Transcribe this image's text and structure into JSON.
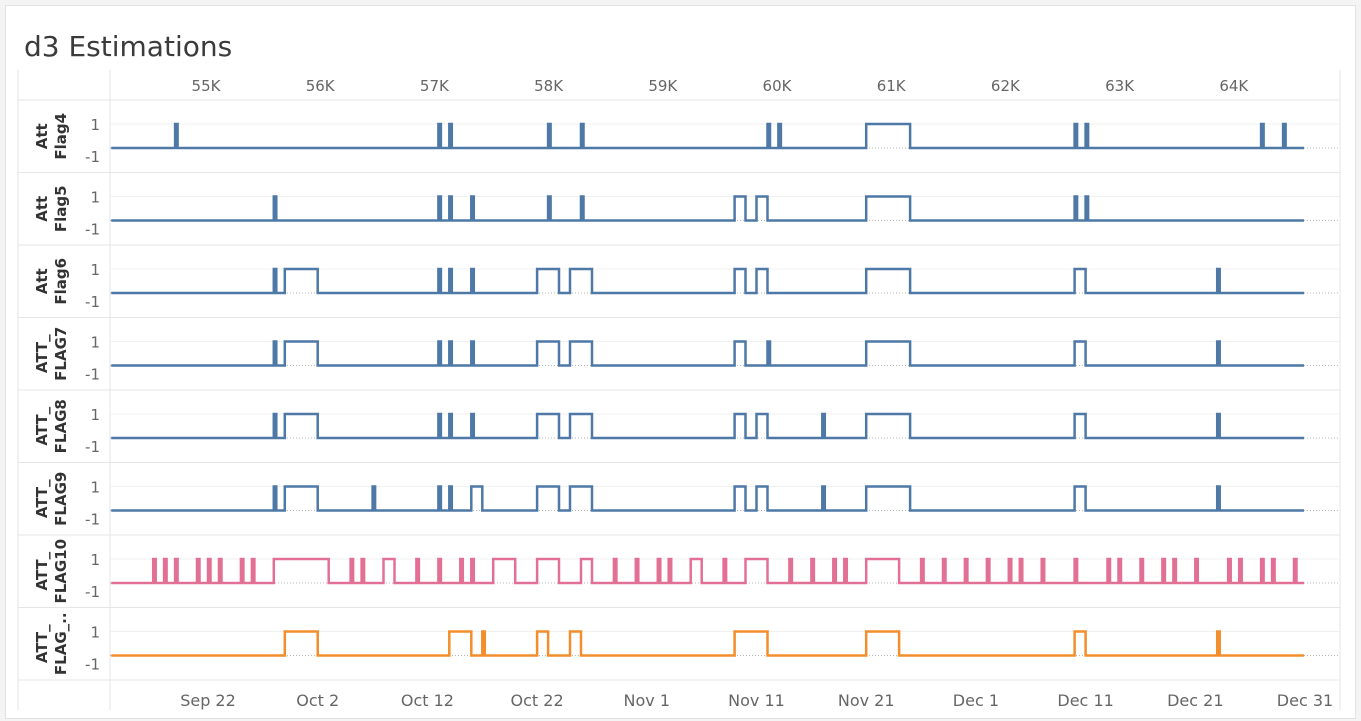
{
  "title": "d3 Estimations",
  "chart_data": {
    "type": "line",
    "title": "d3 Estimations",
    "interpolation": "step",
    "x_top": {
      "label": "",
      "ticks": [
        "55K",
        "56K",
        "57K",
        "58K",
        "59K",
        "60K",
        "61K",
        "62K",
        "63K",
        "64K"
      ]
    },
    "x_bottom": {
      "label": "",
      "range": [
        "2023-09-17",
        "2023-12-31"
      ],
      "ticks": [
        {
          "label": "Sep 22",
          "date": "2023-09-22"
        },
        {
          "label": "Oct 2",
          "date": "2023-10-02"
        },
        {
          "label": "Oct 12",
          "date": "2023-10-12"
        },
        {
          "label": "Oct 22",
          "date": "2023-10-22"
        },
        {
          "label": "Nov 1",
          "date": "2023-11-01"
        },
        {
          "label": "Nov 11",
          "date": "2023-11-11"
        },
        {
          "label": "Nov 21",
          "date": "2023-11-21"
        },
        {
          "label": "Dec 1",
          "date": "2023-12-01"
        },
        {
          "label": "Dec 11",
          "date": "2023-12-11"
        },
        {
          "label": "Dec 21",
          "date": "2023-12-21"
        },
        {
          "label": "Dec 31",
          "date": "2023-12-31"
        }
      ]
    },
    "y": {
      "ticks": [
        "1",
        "-1"
      ],
      "ylim": [
        -1.5,
        1.5
      ],
      "baseline_line": 0
    },
    "time_span": [
      "2023-09-17",
      "2023-12-30"
    ],
    "series": [
      {
        "name": "Att Flag4",
        "color": "#4e79a7",
        "high_intervals": [
          [
            "2023-09-19",
            "2023-09-19"
          ],
          [
            "2023-10-13",
            "2023-10-13"
          ],
          [
            "2023-10-14",
            "2023-10-14"
          ],
          [
            "2023-10-23",
            "2023-10-23"
          ],
          [
            "2023-10-26",
            "2023-10-26"
          ],
          [
            "2023-11-12",
            "2023-11-12"
          ],
          [
            "2023-11-13",
            "2023-11-13"
          ],
          [
            "2023-11-21",
            "2023-11-25"
          ],
          [
            "2023-12-10",
            "2023-12-10"
          ],
          [
            "2023-12-11",
            "2023-12-11"
          ],
          [
            "2023-12-27",
            "2023-12-27"
          ],
          [
            "2023-12-29",
            "2023-12-29"
          ]
        ]
      },
      {
        "name": "Att Flag5",
        "color": "#4e79a7",
        "high_intervals": [
          [
            "2023-09-28",
            "2023-09-28"
          ],
          [
            "2023-10-13",
            "2023-10-13"
          ],
          [
            "2023-10-14",
            "2023-10-14"
          ],
          [
            "2023-10-16",
            "2023-10-16"
          ],
          [
            "2023-10-23",
            "2023-10-23"
          ],
          [
            "2023-10-26",
            "2023-10-26"
          ],
          [
            "2023-11-09",
            "2023-11-10"
          ],
          [
            "2023-11-11",
            "2023-11-12"
          ],
          [
            "2023-11-21",
            "2023-11-25"
          ],
          [
            "2023-12-10",
            "2023-12-10"
          ],
          [
            "2023-12-11",
            "2023-12-11"
          ]
        ]
      },
      {
        "name": "Att Flag6",
        "color": "#4e79a7",
        "high_intervals": [
          [
            "2023-09-28",
            "2023-09-28"
          ],
          [
            "2023-09-29",
            "2023-10-02"
          ],
          [
            "2023-10-13",
            "2023-10-13"
          ],
          [
            "2023-10-14",
            "2023-10-14"
          ],
          [
            "2023-10-16",
            "2023-10-16"
          ],
          [
            "2023-10-22",
            "2023-10-24"
          ],
          [
            "2023-10-25",
            "2023-10-27"
          ],
          [
            "2023-11-09",
            "2023-11-10"
          ],
          [
            "2023-11-11",
            "2023-11-12"
          ],
          [
            "2023-11-21",
            "2023-11-25"
          ],
          [
            "2023-12-10",
            "2023-12-11"
          ],
          [
            "2023-12-23",
            "2023-12-23"
          ]
        ]
      },
      {
        "name": "ATT_ FLAG7",
        "color": "#4e79a7",
        "high_intervals": [
          [
            "2023-09-28",
            "2023-09-28"
          ],
          [
            "2023-09-29",
            "2023-10-02"
          ],
          [
            "2023-10-13",
            "2023-10-13"
          ],
          [
            "2023-10-14",
            "2023-10-14"
          ],
          [
            "2023-10-16",
            "2023-10-16"
          ],
          [
            "2023-10-22",
            "2023-10-24"
          ],
          [
            "2023-10-25",
            "2023-10-27"
          ],
          [
            "2023-11-09",
            "2023-11-10"
          ],
          [
            "2023-11-12",
            "2023-11-12"
          ],
          [
            "2023-11-21",
            "2023-11-25"
          ],
          [
            "2023-12-10",
            "2023-12-11"
          ],
          [
            "2023-12-23",
            "2023-12-23"
          ]
        ]
      },
      {
        "name": "ATT_ FLAG8",
        "color": "#4e79a7",
        "high_intervals": [
          [
            "2023-09-28",
            "2023-09-28"
          ],
          [
            "2023-09-29",
            "2023-10-02"
          ],
          [
            "2023-10-13",
            "2023-10-13"
          ],
          [
            "2023-10-14",
            "2023-10-14"
          ],
          [
            "2023-10-16",
            "2023-10-16"
          ],
          [
            "2023-10-22",
            "2023-10-24"
          ],
          [
            "2023-10-25",
            "2023-10-27"
          ],
          [
            "2023-11-09",
            "2023-11-10"
          ],
          [
            "2023-11-11",
            "2023-11-12"
          ],
          [
            "2023-11-17",
            "2023-11-17"
          ],
          [
            "2023-11-21",
            "2023-11-25"
          ],
          [
            "2023-12-10",
            "2023-12-11"
          ],
          [
            "2023-12-23",
            "2023-12-23"
          ]
        ]
      },
      {
        "name": "ATT_ FLAG9",
        "color": "#4e79a7",
        "high_intervals": [
          [
            "2023-09-28",
            "2023-09-28"
          ],
          [
            "2023-09-29",
            "2023-10-02"
          ],
          [
            "2023-10-07",
            "2023-10-07"
          ],
          [
            "2023-10-13",
            "2023-10-13"
          ],
          [
            "2023-10-14",
            "2023-10-14"
          ],
          [
            "2023-10-16",
            "2023-10-17"
          ],
          [
            "2023-10-22",
            "2023-10-24"
          ],
          [
            "2023-10-25",
            "2023-10-27"
          ],
          [
            "2023-11-09",
            "2023-11-10"
          ],
          [
            "2023-11-11",
            "2023-11-12"
          ],
          [
            "2023-11-17",
            "2023-11-17"
          ],
          [
            "2023-11-21",
            "2023-11-25"
          ],
          [
            "2023-12-10",
            "2023-12-11"
          ],
          [
            "2023-12-23",
            "2023-12-23"
          ]
        ]
      },
      {
        "name": "ATT_ FLAG10",
        "color": "#e27095",
        "pattern": "frequent short spikes across the whole period; dense clusters Sep 28–Oct 3, Oct 18–20, Nov 10–12 and Nov 21–24",
        "high_intervals": [
          [
            "2023-09-17",
            "2023-09-17"
          ],
          [
            "2023-09-18",
            "2023-09-18"
          ],
          [
            "2023-09-19",
            "2023-09-19"
          ],
          [
            "2023-09-21",
            "2023-09-21"
          ],
          [
            "2023-09-22",
            "2023-09-22"
          ],
          [
            "2023-09-23",
            "2023-09-23"
          ],
          [
            "2023-09-25",
            "2023-09-25"
          ],
          [
            "2023-09-26",
            "2023-09-26"
          ],
          [
            "2023-09-28",
            "2023-10-03"
          ],
          [
            "2023-10-05",
            "2023-10-05"
          ],
          [
            "2023-10-06",
            "2023-10-06"
          ],
          [
            "2023-10-08",
            "2023-10-09"
          ],
          [
            "2023-10-11",
            "2023-10-11"
          ],
          [
            "2023-10-13",
            "2023-10-13"
          ],
          [
            "2023-10-15",
            "2023-10-15"
          ],
          [
            "2023-10-16",
            "2023-10-16"
          ],
          [
            "2023-10-18",
            "2023-10-20"
          ],
          [
            "2023-10-22",
            "2023-10-24"
          ],
          [
            "2023-10-26",
            "2023-10-27"
          ],
          [
            "2023-10-29",
            "2023-10-29"
          ],
          [
            "2023-10-31",
            "2023-10-31"
          ],
          [
            "2023-11-02",
            "2023-11-02"
          ],
          [
            "2023-11-03",
            "2023-11-03"
          ],
          [
            "2023-11-05",
            "2023-11-06"
          ],
          [
            "2023-11-08",
            "2023-11-08"
          ],
          [
            "2023-11-10",
            "2023-11-12"
          ],
          [
            "2023-11-14",
            "2023-11-14"
          ],
          [
            "2023-11-16",
            "2023-11-16"
          ],
          [
            "2023-11-18",
            "2023-11-18"
          ],
          [
            "2023-11-19",
            "2023-11-19"
          ],
          [
            "2023-11-21",
            "2023-11-24"
          ],
          [
            "2023-11-26",
            "2023-11-26"
          ],
          [
            "2023-11-28",
            "2023-11-28"
          ],
          [
            "2023-11-30",
            "2023-11-30"
          ],
          [
            "2023-12-02",
            "2023-12-02"
          ],
          [
            "2023-12-04",
            "2023-12-04"
          ],
          [
            "2023-12-05",
            "2023-12-05"
          ],
          [
            "2023-12-07",
            "2023-12-07"
          ],
          [
            "2023-12-10",
            "2023-12-10"
          ],
          [
            "2023-12-13",
            "2023-12-13"
          ],
          [
            "2023-12-14",
            "2023-12-14"
          ],
          [
            "2023-12-16",
            "2023-12-16"
          ],
          [
            "2023-12-18",
            "2023-12-18"
          ],
          [
            "2023-12-19",
            "2023-12-19"
          ],
          [
            "2023-12-21",
            "2023-12-21"
          ],
          [
            "2023-12-24",
            "2023-12-24"
          ],
          [
            "2023-12-25",
            "2023-12-25"
          ],
          [
            "2023-12-27",
            "2023-12-27"
          ],
          [
            "2023-12-28",
            "2023-12-28"
          ],
          [
            "2023-12-30",
            "2023-12-30"
          ]
        ]
      },
      {
        "name": "ATT_ FLAG_..",
        "color": "#f28e2b",
        "high_intervals": [
          [
            "2023-09-29",
            "2023-10-02"
          ],
          [
            "2023-10-14",
            "2023-10-16"
          ],
          [
            "2023-10-17",
            "2023-10-17"
          ],
          [
            "2023-10-22",
            "2023-10-23"
          ],
          [
            "2023-10-25",
            "2023-10-26"
          ],
          [
            "2023-11-09",
            "2023-11-12"
          ],
          [
            "2023-11-21",
            "2023-11-24"
          ],
          [
            "2023-12-10",
            "2023-12-11"
          ],
          [
            "2023-12-23",
            "2023-12-23"
          ]
        ]
      }
    ]
  }
}
